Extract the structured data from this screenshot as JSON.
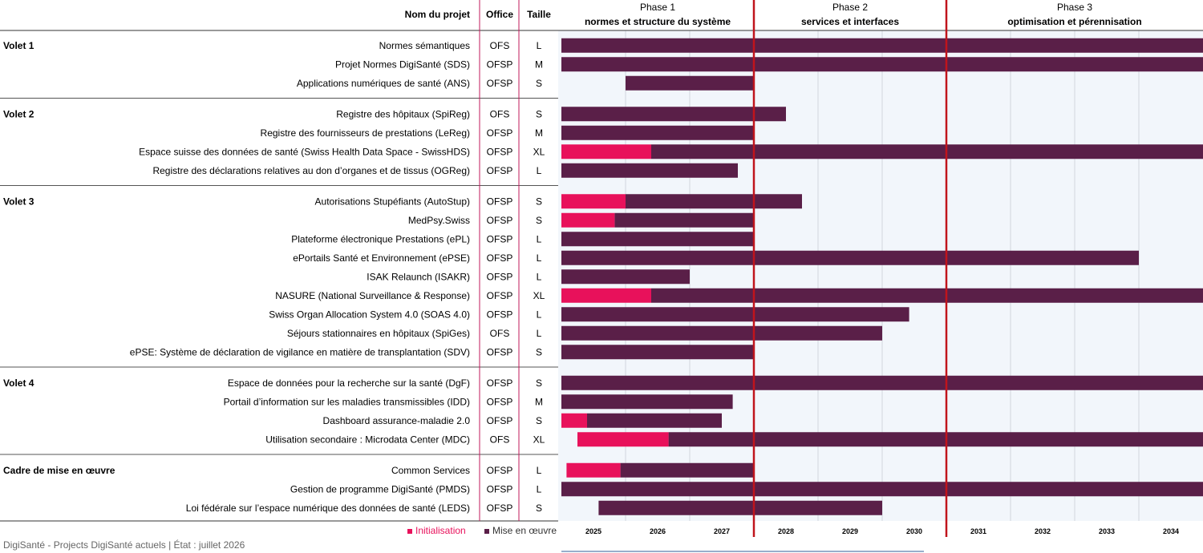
{
  "header": {
    "project_col": "Nom du projet",
    "office_col": "Office",
    "size_col": "Taille"
  },
  "phases": [
    {
      "name": "Phase 1",
      "subtitle": "normes et structure du système"
    },
    {
      "name": "Phase 2",
      "subtitle": "services et interfaces"
    },
    {
      "name": "Phase 3",
      "subtitle": "optimisation et pérennisation"
    }
  ],
  "legend": {
    "init": "Initialisation",
    "impl": "Mise en œuvre"
  },
  "footer": {
    "text": "DigiSanté - Projects DigiSanté actuels | État : juillet 2026"
  },
  "colors": {
    "initialisation": "#e8115b",
    "mise_en_oeuvre": "#5a1f48",
    "grid_background": "#f2f6fb",
    "phase_divider": "#c0141c",
    "office_divider": "#c2185b"
  },
  "chart_data": {
    "type": "gantt",
    "x_axis": {
      "unit": "year",
      "range": [
        2025,
        2035
      ],
      "ticks": [
        "2025",
        "2026",
        "2027",
        "2028",
        "2029",
        "2030",
        "2031",
        "2032",
        "2033",
        "2034"
      ]
    },
    "phase_boundaries": [
      2028,
      2031
    ],
    "groups": [
      {
        "name": "Volet 1",
        "projects": [
          {
            "name": "Normes sémantiques",
            "office": "OFS",
            "size": "L",
            "init": null,
            "impl": [
              2025,
              2035
            ]
          },
          {
            "name": "Projet Normes DigiSanté (SDS)",
            "office": "OFSP",
            "size": "M",
            "init": null,
            "impl": [
              2025,
              2035
            ]
          },
          {
            "name": "Applications numériques de santé (ANS)",
            "office": "OFSP",
            "size": "S",
            "init": null,
            "impl": [
              2026,
              2028
            ]
          }
        ]
      },
      {
        "name": "Volet 2",
        "projects": [
          {
            "name": "Registre des hôpitaux (SpiReg)",
            "office": "OFS",
            "size": "S",
            "init": null,
            "impl": [
              2025,
              2028.5
            ]
          },
          {
            "name": "Registre des fournisseurs de prestations (LeReg)",
            "office": "OFSP",
            "size": "M",
            "init": null,
            "impl": [
              2025,
              2028
            ]
          },
          {
            "name": "Espace suisse des données de santé (Swiss Health Data Space - SwissHDS)",
            "office": "OFSP",
            "size": "XL",
            "init": [
              2025,
              2026.4
            ],
            "impl": [
              2026.4,
              2035
            ]
          },
          {
            "name": "Registre des déclarations relatives au don d’organes et de tissus (OGReg)",
            "office": "OFSP",
            "size": "L",
            "init": null,
            "impl": [
              2025,
              2027.75
            ]
          }
        ]
      },
      {
        "name": "Volet 3",
        "projects": [
          {
            "name": "Autorisations Stupéfiants (AutoStup)",
            "office": "OFSP",
            "size": "S",
            "init": [
              2025,
              2026
            ],
            "impl": [
              2026,
              2028.75
            ]
          },
          {
            "name": "MedPsy.Swiss",
            "office": "OFSP",
            "size": "S",
            "init": [
              2025,
              2025.83
            ],
            "impl": [
              2025.83,
              2028
            ]
          },
          {
            "name": "Plateforme électronique Prestations (ePL)",
            "office": "OFSP",
            "size": "L",
            "init": null,
            "impl": [
              2025,
              2028
            ]
          },
          {
            "name": "ePortails Santé et Environnement (ePSE)",
            "office": "OFSP",
            "size": "L",
            "init": null,
            "impl": [
              2025,
              2034
            ]
          },
          {
            "name": "ISAK Relaunch (ISAKR)",
            "office": "OFSP",
            "size": "L",
            "init": null,
            "impl": [
              2025,
              2027
            ]
          },
          {
            "name": "NASURE (National Surveillance & Response)",
            "office": "OFSP",
            "size": "XL",
            "init": [
              2025,
              2026.4
            ],
            "impl": [
              2026.4,
              2035
            ]
          },
          {
            "name": "Swiss Organ Allocation System 4.0 (SOAS 4.0)",
            "office": "OFSP",
            "size": "L",
            "init": null,
            "impl": [
              2025,
              2030.42
            ]
          },
          {
            "name": "Séjours stationnaires en hôpitaux (SpiGes)",
            "office": "OFS",
            "size": "L",
            "init": null,
            "impl": [
              2025,
              2030
            ]
          },
          {
            "name": "ePSE: Système de déclaration de vigilance en matière de transplantation (SDV)",
            "office": "OFSP",
            "size": "S",
            "init": null,
            "impl": [
              2025,
              2028
            ]
          }
        ]
      },
      {
        "name": "Volet 4",
        "projects": [
          {
            "name": "Espace de données pour la recherche sur la santé (DgF)",
            "office": "OFSP",
            "size": "S",
            "init": null,
            "impl": [
              2025,
              2035
            ]
          },
          {
            "name": "Portail d’information sur les maladies transmissibles (IDD)",
            "office": "OFSP",
            "size": "M",
            "init": null,
            "impl": [
              2025,
              2027.67
            ]
          },
          {
            "name": "Dashboard assurance-maladie 2.0",
            "office": "OFSP",
            "size": "S",
            "init": [
              2025,
              2025.4
            ],
            "impl": [
              2025.4,
              2027.5
            ]
          },
          {
            "name": "Utilisation secondaire : Microdata Center (MDC)",
            "office": "OFS",
            "size": "XL",
            "init": [
              2025.25,
              2026.67
            ],
            "impl": [
              2026.67,
              2035
            ]
          }
        ]
      },
      {
        "name": "Cadre de mise en œuvre",
        "projects": [
          {
            "name": "Common Services",
            "office": "OFSP",
            "size": "L",
            "init": [
              2025.08,
              2025.92
            ],
            "impl": [
              2025.92,
              2028
            ]
          },
          {
            "name": "Gestion de programme DigiSanté (PMDS)",
            "office": "OFSP",
            "size": "L",
            "init": null,
            "impl": [
              2025,
              2035
            ]
          },
          {
            "name": "Loi fédérale sur l’espace numérique des données de santé (LEDS)",
            "office": "OFSP",
            "size": "S",
            "init": null,
            "impl": [
              2025.58,
              2030
            ]
          }
        ]
      }
    ]
  }
}
